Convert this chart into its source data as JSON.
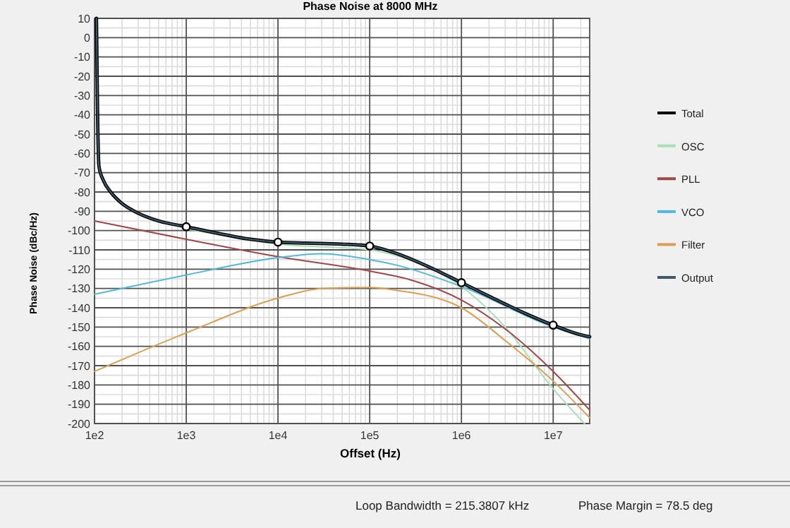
{
  "chart_data": {
    "type": "line",
    "title": "Phase Noise at 8000 MHz",
    "xlabel": "Offset (Hz)",
    "ylabel": "Phase Noise (dBc/Hz)",
    "log": "x",
    "grid": true,
    "legend": "right",
    "line_style": "solid",
    "xlim": [
      100,
      25000000
    ],
    "xticks": [
      {
        "value": 100,
        "label": "1e2"
      },
      {
        "value": 1000,
        "label": "1e3"
      },
      {
        "value": 10000,
        "label": "1e4"
      },
      {
        "value": 100000,
        "label": "1e5"
      },
      {
        "value": 1000000,
        "label": "1e6"
      },
      {
        "value": 10000000,
        "label": "1e7"
      }
    ],
    "ylim": [
      -200,
      10
    ],
    "yticks": [
      10,
      0,
      -10,
      -20,
      -30,
      -40,
      -50,
      -60,
      -70,
      -80,
      -90,
      -100,
      -110,
      -120,
      -130,
      -140,
      -150,
      -160,
      -170,
      -180,
      -190,
      -200
    ],
    "annotations": [
      "Loop Bandwidth = 215.3807 kHz",
      "Phase Margin = 78.5 deg"
    ],
    "series": [
      {
        "name": "Total",
        "color": "#000000",
        "x": [
          105,
          108,
          112,
          125,
          150,
          200,
          300,
          500,
          1000,
          2000,
          5000,
          10000,
          20000,
          50000,
          100000,
          200000,
          500000,
          1000000,
          2000000,
          5000000,
          10000000,
          20000000,
          25000000
        ],
        "values": [
          10,
          -40,
          -67,
          -74,
          -80,
          -86,
          -91,
          -95,
          -98,
          -101,
          -104.5,
          -106,
          -106.5,
          -107,
          -108,
          -112,
          -120,
          -127,
          -134,
          -143,
          -149,
          -154,
          -155
        ]
      },
      {
        "name": "OSC",
        "color": "#a8e0b8",
        "x": [
          1000,
          10000,
          100000,
          300000,
          1000000,
          3000000,
          10000000,
          22000000
        ],
        "values": [
          -99,
          -107,
          -110,
          -116,
          -129,
          -150,
          -182,
          -200
        ]
      },
      {
        "name": "PLL",
        "color": "#a04848",
        "x": [
          100,
          1000,
          10000,
          100000,
          300000,
          1000000,
          3000000,
          10000000,
          25000000
        ],
        "values": [
          -95,
          -104.5,
          -113.5,
          -121,
          -126,
          -136,
          -151,
          -173,
          -193
        ]
      },
      {
        "name": "VCO",
        "color": "#50b8d8",
        "x": [
          100,
          1000,
          10000,
          30000,
          100000,
          200000,
          1000000,
          10000000,
          25000000
        ],
        "values": [
          -133,
          -123,
          -114,
          -112,
          -115,
          -118,
          -129,
          -150,
          -156
        ]
      },
      {
        "name": "Filter",
        "color": "#d8a050",
        "x": [
          100,
          1000,
          10000,
          30000,
          100000,
          200000,
          1000000,
          3000000,
          10000000,
          25000000
        ],
        "values": [
          -173,
          -153,
          -135,
          -130,
          -129.5,
          -131,
          -140,
          -157,
          -178,
          -197
        ]
      },
      {
        "name": "Output",
        "color": "#3d5a6b",
        "x": [
          105,
          108,
          112,
          125,
          150,
          200,
          300,
          500,
          1000,
          2000,
          5000,
          10000,
          20000,
          50000,
          100000,
          200000,
          500000,
          1000000,
          2000000,
          5000000,
          10000000,
          20000000,
          25000000
        ],
        "values": [
          10,
          -40,
          -67,
          -74,
          -80,
          -86,
          -91,
          -95,
          -98,
          -101,
          -104.5,
          -106,
          -106.5,
          -107,
          -108,
          -112,
          -120,
          -127,
          -134,
          -143,
          -149,
          -154,
          -155
        ]
      },
      {
        "type": "scatter",
        "marker": "circle",
        "color": "#000000",
        "x": [
          1000,
          10000,
          100000,
          1000000,
          10000000
        ],
        "values": [
          -98,
          -106,
          -108,
          -127,
          -149
        ]
      }
    ]
  }
}
